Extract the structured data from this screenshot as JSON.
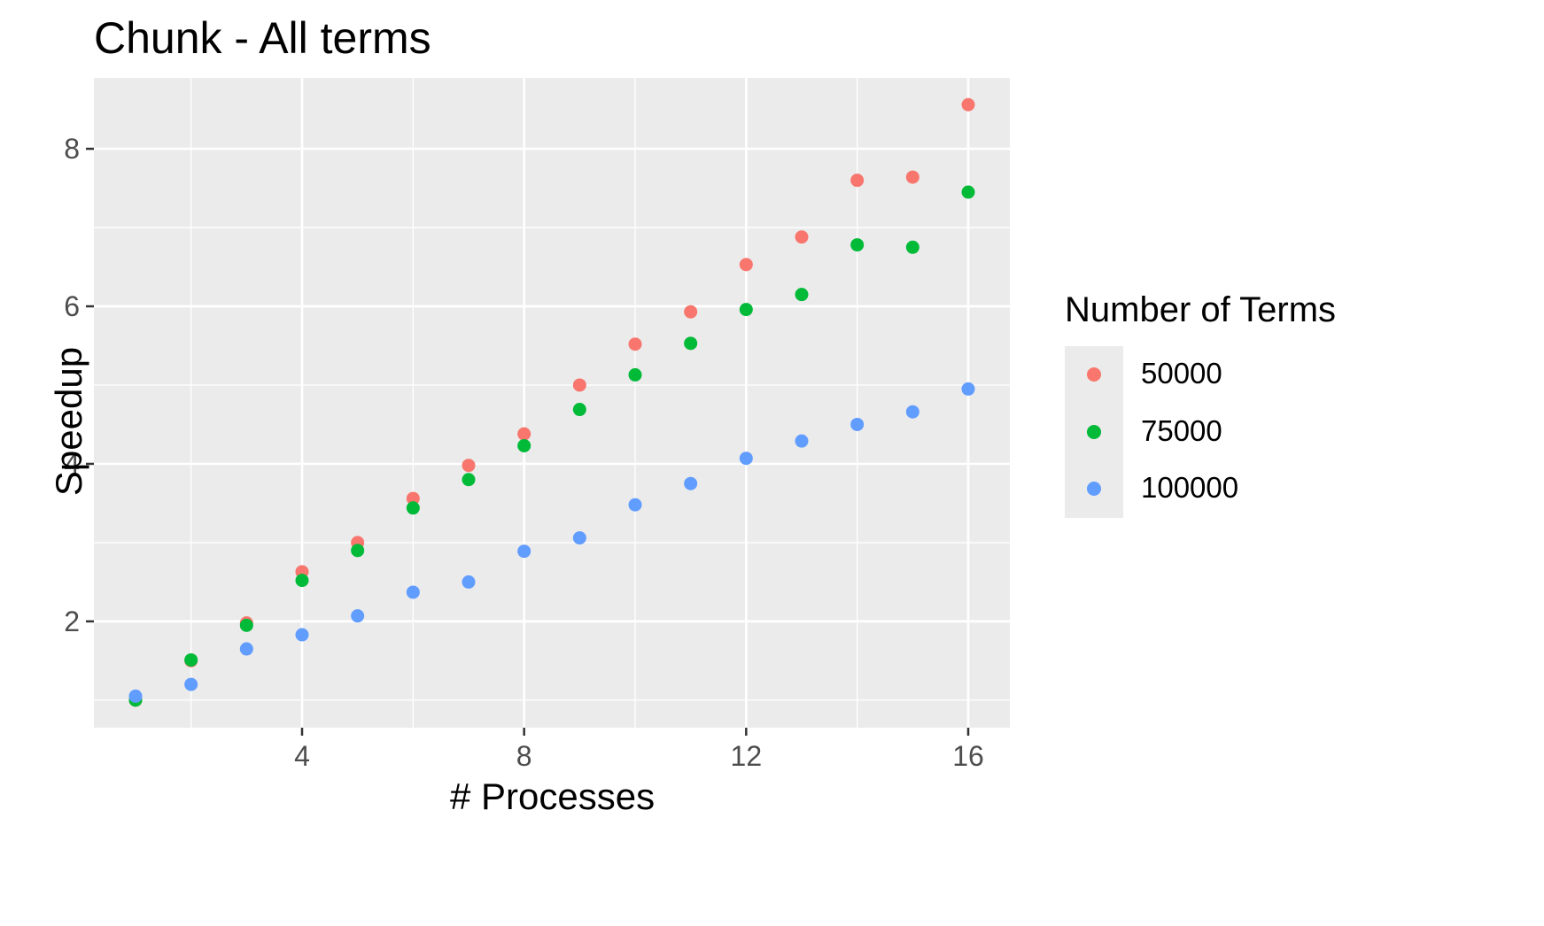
{
  "chart_data": {
    "type": "scatter",
    "title": "Chunk - All terms",
    "xlabel": "# Processes",
    "ylabel": "Speedup",
    "xlim": [
      0.25,
      16.75
    ],
    "ylim": [
      0.65,
      8.9
    ],
    "x_ticks": [
      4,
      8,
      12,
      16
    ],
    "y_ticks": [
      2,
      4,
      6,
      8
    ],
    "x_tick_labels": [
      "4",
      "8",
      "12",
      "16"
    ],
    "y_tick_labels": [
      "2",
      "4",
      "6",
      "8"
    ],
    "grid": true,
    "background": "#ebebeb",
    "legend_position": "right",
    "legend_title": "Number of Terms",
    "x": [
      1,
      2,
      3,
      4,
      5,
      6,
      7,
      8,
      9,
      10,
      11,
      12,
      13,
      14,
      15,
      16
    ],
    "series": [
      {
        "name": "50000",
        "color": "#f8766d",
        "values": [
          1.0,
          1.5,
          1.98,
          2.63,
          3.0,
          3.56,
          3.98,
          4.38,
          5.0,
          5.52,
          5.93,
          6.53,
          6.88,
          7.6,
          7.64,
          8.56
        ]
      },
      {
        "name": "75000",
        "color": "#00ba38",
        "values": [
          1.0,
          1.51,
          1.95,
          2.52,
          2.9,
          3.44,
          3.8,
          4.23,
          4.69,
          5.13,
          5.53,
          5.96,
          6.15,
          6.78,
          6.75,
          7.45
        ]
      },
      {
        "name": "100000",
        "color": "#619cff",
        "values": [
          1.05,
          1.2,
          1.65,
          1.83,
          2.07,
          2.37,
          2.5,
          2.89,
          3.06,
          3.48,
          3.75,
          4.07,
          4.29,
          4.5,
          4.66,
          4.95
        ]
      }
    ]
  }
}
